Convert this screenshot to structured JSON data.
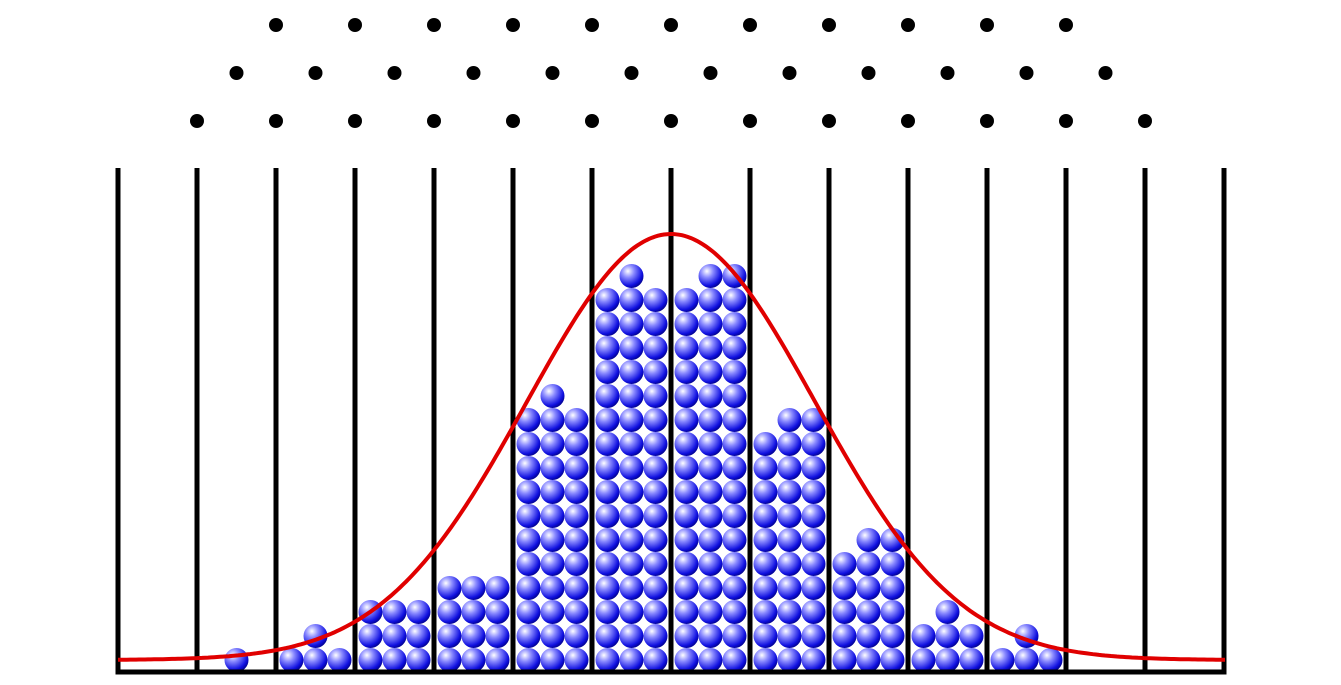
{
  "board": {
    "stacks": [
      [
        0,
        0,
        0
      ],
      [
        0,
        1,
        0
      ],
      [
        1,
        2,
        1
      ],
      [
        3,
        3,
        3
      ],
      [
        4,
        4,
        4
      ],
      [
        11,
        12,
        11
      ],
      [
        16,
        17,
        16
      ],
      [
        16,
        17,
        17
      ],
      [
        10,
        11,
        11
      ],
      [
        5,
        6,
        6
      ],
      [
        2,
        3,
        2
      ],
      [
        1,
        2,
        1
      ],
      [
        0,
        0,
        0
      ],
      [
        0,
        0,
        0
      ]
    ]
  }
}
